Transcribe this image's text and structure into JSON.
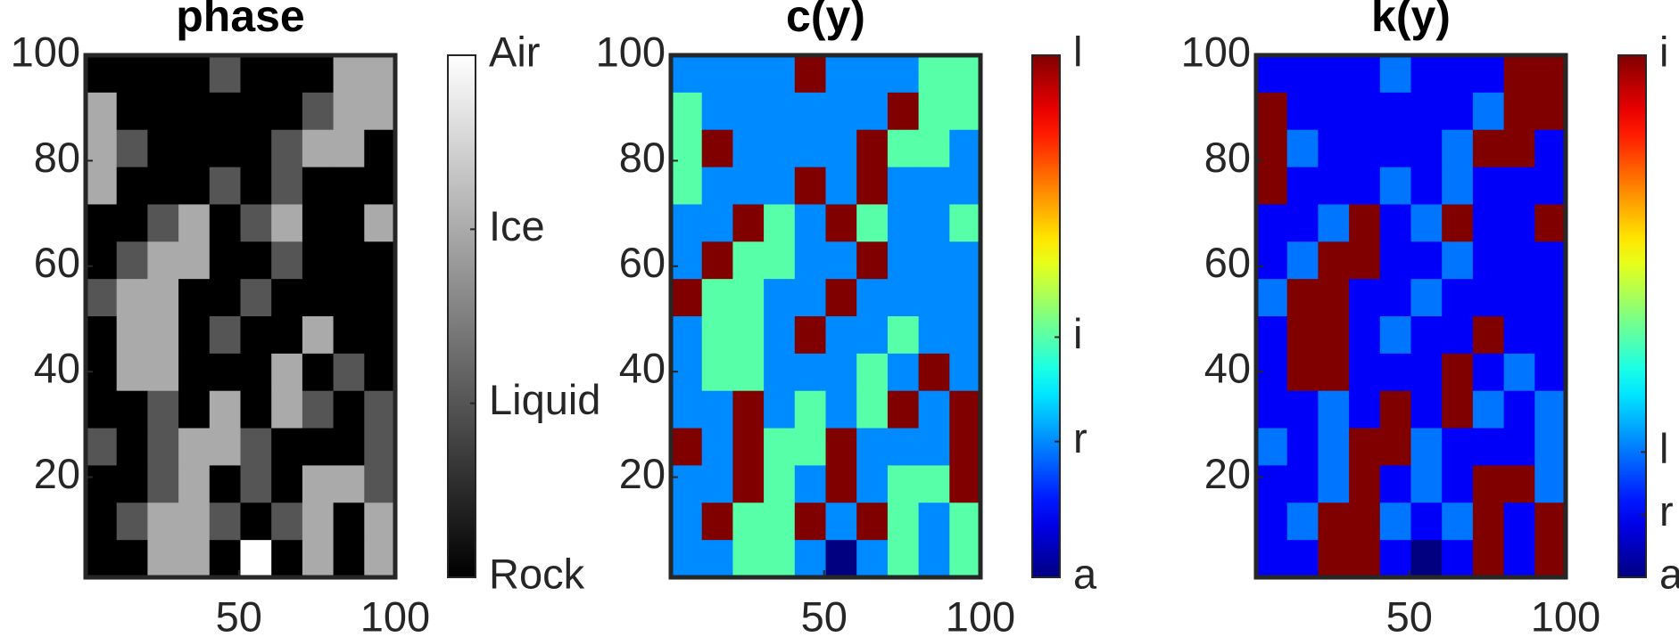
{
  "chart_data": [
    {
      "type": "heatmap",
      "title": "phase",
      "colormap": "gray",
      "xlim": [
        1,
        100
      ],
      "ylim": [
        1,
        100
      ],
      "xticks": [
        50,
        100
      ],
      "yticks": [
        20,
        40,
        60,
        80,
        100
      ],
      "clim": [
        0,
        3
      ],
      "cticks": [
        {
          "value": 0,
          "label": "Rock"
        },
        {
          "value": 1,
          "label": "Liquid"
        },
        {
          "value": 2,
          "label": "Ice"
        },
        {
          "value": 3,
          "label": "Air"
        }
      ],
      "z": [
        [
          0,
          0,
          0,
          0,
          1,
          0,
          0,
          0,
          2,
          2
        ],
        [
          2,
          0,
          0,
          0,
          0,
          0,
          0,
          1,
          2,
          2
        ],
        [
          2,
          1,
          0,
          0,
          0,
          0,
          1,
          2,
          2,
          0
        ],
        [
          2,
          0,
          0,
          0,
          1,
          0,
          1,
          0,
          0,
          0
        ],
        [
          0,
          0,
          1,
          2,
          0,
          1,
          2,
          0,
          0,
          2
        ],
        [
          0,
          1,
          2,
          2,
          0,
          0,
          1,
          0,
          0,
          0
        ],
        [
          1,
          2,
          2,
          0,
          0,
          1,
          0,
          0,
          0,
          0
        ],
        [
          0,
          2,
          2,
          0,
          1,
          0,
          0,
          2,
          0,
          0
        ],
        [
          0,
          2,
          2,
          0,
          0,
          0,
          2,
          0,
          1,
          0
        ],
        [
          0,
          0,
          1,
          0,
          2,
          0,
          2,
          1,
          0,
          1
        ],
        [
          1,
          0,
          1,
          2,
          2,
          1,
          0,
          0,
          0,
          1
        ],
        [
          0,
          0,
          1,
          2,
          0,
          1,
          0,
          2,
          2,
          1
        ],
        [
          0,
          1,
          2,
          2,
          1,
          0,
          1,
          2,
          0,
          2
        ],
        [
          0,
          0,
          2,
          2,
          0,
          3,
          0,
          2,
          0,
          2
        ]
      ]
    },
    {
      "type": "heatmap",
      "title": "c(y)",
      "colormap": "jet",
      "xlim": [
        1,
        100
      ],
      "ylim": [
        1,
        100
      ],
      "xticks": [
        50,
        100
      ],
      "yticks": [
        20,
        40,
        60,
        80,
        100
      ],
      "clim": [
        0,
        1
      ],
      "cticks": [
        {
          "value": 0,
          "label": "a"
        },
        {
          "value": 0.26,
          "label": "r"
        },
        {
          "value": 0.46,
          "label": "i"
        },
        {
          "value": 1,
          "label": "l"
        }
      ],
      "z": [
        [
          0.26,
          0.26,
          0.26,
          0.26,
          1,
          0.26,
          0.26,
          0.26,
          0.46,
          0.46
        ],
        [
          0.46,
          0.26,
          0.26,
          0.26,
          0.26,
          0.26,
          0.26,
          1,
          0.46,
          0.46
        ],
        [
          0.46,
          1,
          0.26,
          0.26,
          0.26,
          0.26,
          1,
          0.46,
          0.46,
          0.26
        ],
        [
          0.46,
          0.26,
          0.26,
          0.26,
          1,
          0.26,
          1,
          0.26,
          0.26,
          0.26
        ],
        [
          0.26,
          0.26,
          1,
          0.46,
          0.26,
          1,
          0.46,
          0.26,
          0.26,
          0.46
        ],
        [
          0.26,
          1,
          0.46,
          0.46,
          0.26,
          0.26,
          1,
          0.26,
          0.26,
          0.26
        ],
        [
          1,
          0.46,
          0.46,
          0.26,
          0.26,
          1,
          0.26,
          0.26,
          0.26,
          0.26
        ],
        [
          0.26,
          0.46,
          0.46,
          0.26,
          1,
          0.26,
          0.26,
          0.46,
          0.26,
          0.26
        ],
        [
          0.26,
          0.46,
          0.46,
          0.26,
          0.26,
          0.26,
          0.46,
          0.26,
          1,
          0.26
        ],
        [
          0.26,
          0.26,
          1,
          0.26,
          0.46,
          0.26,
          0.46,
          1,
          0.26,
          1
        ],
        [
          1,
          0.26,
          1,
          0.46,
          0.46,
          1,
          0.26,
          0.26,
          0.26,
          1
        ],
        [
          0.26,
          0.26,
          1,
          0.46,
          0.26,
          1,
          0.26,
          0.46,
          0.46,
          1
        ],
        [
          0.26,
          1,
          0.46,
          0.46,
          1,
          0.26,
          1,
          0.46,
          0.26,
          0.46
        ],
        [
          0.26,
          0.26,
          0.46,
          0.46,
          0.26,
          0,
          0.26,
          0.46,
          0.26,
          0.46
        ]
      ]
    },
    {
      "type": "heatmap",
      "title": "k(y)",
      "colormap": "jet",
      "xlim": [
        1,
        100
      ],
      "ylim": [
        1,
        100
      ],
      "xticks": [
        50,
        100
      ],
      "yticks": [
        20,
        40,
        60,
        80,
        100
      ],
      "clim": [
        0,
        1
      ],
      "cticks": [
        {
          "value": 0,
          "label": "a"
        },
        {
          "value": 0.12,
          "label": "r"
        },
        {
          "value": 0.24,
          "label": "l"
        },
        {
          "value": 1,
          "label": "i"
        }
      ],
      "z": [
        [
          0.12,
          0.12,
          0.12,
          0.12,
          0.24,
          0.12,
          0.12,
          0.12,
          1,
          1
        ],
        [
          1,
          0.12,
          0.12,
          0.12,
          0.12,
          0.12,
          0.12,
          0.24,
          1,
          1
        ],
        [
          1,
          0.24,
          0.12,
          0.12,
          0.12,
          0.12,
          0.24,
          1,
          1,
          0.12
        ],
        [
          1,
          0.12,
          0.12,
          0.12,
          0.24,
          0.12,
          0.24,
          0.12,
          0.12,
          0.12
        ],
        [
          0.12,
          0.12,
          0.24,
          1,
          0.12,
          0.24,
          1,
          0.12,
          0.12,
          1
        ],
        [
          0.12,
          0.24,
          1,
          1,
          0.12,
          0.12,
          0.24,
          0.12,
          0.12,
          0.12
        ],
        [
          0.24,
          1,
          1,
          0.12,
          0.12,
          0.24,
          0.12,
          0.12,
          0.12,
          0.12
        ],
        [
          0.12,
          1,
          1,
          0.12,
          0.24,
          0.12,
          0.12,
          1,
          0.12,
          0.12
        ],
        [
          0.12,
          1,
          1,
          0.12,
          0.12,
          0.12,
          1,
          0.12,
          0.24,
          0.12
        ],
        [
          0.12,
          0.12,
          0.24,
          0.12,
          1,
          0.12,
          1,
          0.24,
          0.12,
          0.24
        ],
        [
          0.24,
          0.12,
          0.24,
          1,
          1,
          0.24,
          0.12,
          0.12,
          0.12,
          0.24
        ],
        [
          0.12,
          0.12,
          0.24,
          1,
          0.12,
          0.24,
          0.12,
          1,
          1,
          0.24
        ],
        [
          0.12,
          0.24,
          1,
          1,
          0.24,
          0.12,
          0.24,
          1,
          0.12,
          1
        ],
        [
          0.12,
          0.12,
          1,
          1,
          0.12,
          0,
          0.12,
          1,
          0.12,
          1
        ]
      ]
    }
  ]
}
